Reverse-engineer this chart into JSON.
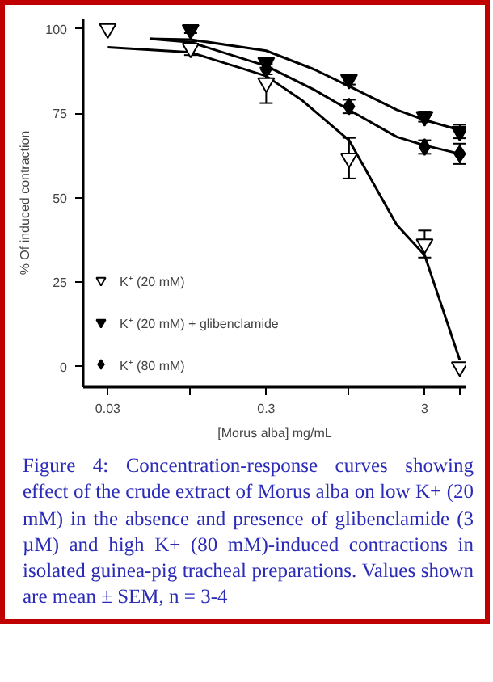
{
  "chart_data": {
    "type": "scatter",
    "xlabel": "[Morus alba] mg/mL",
    "ylabel": "% Of induced contraction",
    "log": "x",
    "xlim": [
      0.021,
      5.5
    ],
    "xticks": [
      0.03,
      {
        "value": 0.1,
        "label": null
      },
      0.3,
      {
        "value": 1,
        "label": null
      },
      3,
      {
        "value": 5,
        "label": null
      }
    ],
    "ylim": [
      -6,
      103
    ],
    "yticks": [
      0,
      25,
      50,
      75,
      100
    ],
    "grid": false,
    "legend": "bottom left",
    "x": [
      0.03,
      0.1,
      0.3,
      1,
      3,
      5
    ],
    "series": [
      {
        "name": "K⁺ (20 mM)",
        "color": "#ffffff",
        "marker": "triangle",
        "values": [
          100,
          94.2,
          84,
          61.7,
          36.3,
          0
        ],
        "errors": [
          null,
          2,
          6,
          6,
          4,
          null
        ]
      },
      {
        "name": "K⁺ (20 mM) + glibenclamide",
        "color": "#000000",
        "marker": "triangle",
        "values": [
          null,
          99.7,
          90,
          85,
          74,
          69.6
        ],
        "errors": [
          null,
          1,
          1.5,
          1.5,
          1.5,
          2
        ]
      },
      {
        "name": "K⁺ (80 mM)",
        "color": "#000000",
        "marker": "diamond",
        "values": [
          null,
          null,
          88,
          77,
          65,
          63
        ],
        "errors": [
          null,
          null,
          1.5,
          2,
          2,
          3
        ]
      },
      {
        "type": "line",
        "color": "#000000",
        "x": [
          0.03,
          0.1,
          0.3,
          0.5,
          1,
          2,
          3,
          5
        ],
        "values": [
          94.5,
          93,
          86,
          79,
          67,
          42,
          33,
          2
        ]
      },
      {
        "type": "line",
        "color": "#000000",
        "x": [
          0.055,
          0.1,
          0.3,
          0.6,
          1,
          2,
          3,
          5
        ],
        "values": [
          97,
          96.8,
          93.5,
          88,
          83,
          76,
          73,
          70
        ]
      },
      {
        "type": "line",
        "color": "#000000",
        "x": [
          0.055,
          0.1,
          0.3,
          0.6,
          1,
          2,
          3,
          5
        ],
        "values": [
          97,
          96,
          89,
          82,
          76,
          68,
          65.5,
          63
        ]
      }
    ],
    "annotations": [
      "Figure 4: Concentration-response curves showing effect of the crude extract of Morus alba on low K+ (20 mM) in the absence and presence of glibenclamide (3 µM) and high K+ (80 mM)-induced contractions in isolated guinea-pig tracheal preparations. Values shown are mean ± SEM, n = 3-4"
    ]
  }
}
